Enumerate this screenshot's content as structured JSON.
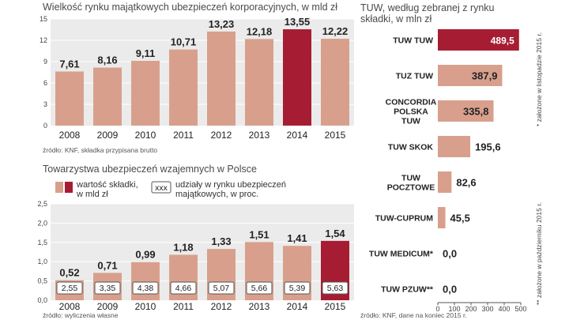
{
  "chart_data": [
    {
      "type": "bar",
      "title": "Wielkość rynku majątkowych ubezpieczeń korporacyjnych, w mld zł",
      "categories": [
        "2008",
        "2009",
        "2010",
        "2011",
        "2012",
        "2013",
        "2014",
        "2015"
      ],
      "values": [
        7.61,
        8.16,
        9.11,
        10.71,
        13.23,
        12.18,
        13.55,
        12.22
      ],
      "value_labels": [
        "7,61",
        "8,16",
        "9,11",
        "10,71",
        "13,23",
        "12,18",
        "13,55",
        "12,22"
      ],
      "y_ticks": [
        "0",
        "3",
        "6",
        "9",
        "12",
        "15"
      ],
      "ylim": [
        0,
        15
      ],
      "highlight_category": "2014",
      "source": "źródło: KNF, składka przypisana brutto"
    },
    {
      "type": "bar",
      "title": "Towarzystwa ubezpieczeń wzajemnych w Polsce",
      "categories": [
        "2008",
        "2009",
        "2010",
        "2011",
        "2012",
        "2013",
        "2014",
        "2015"
      ],
      "values": [
        0.52,
        0.71,
        0.99,
        1.18,
        1.33,
        1.51,
        1.41,
        1.54
      ],
      "value_labels": [
        "0,52",
        "0,71",
        "0,99",
        "1,18",
        "1,33",
        "1,51",
        "1,41",
        "1,54"
      ],
      "shares": [
        "2,55",
        "3,35",
        "4,38",
        "4,66",
        "5,07",
        "5,66",
        "5,39",
        "5,63"
      ],
      "y_ticks": [
        "0,0",
        "0,5",
        "1,0",
        "1,5",
        "2,0",
        "2,5"
      ],
      "ylim": [
        0,
        2.5
      ],
      "highlight_category": "2015",
      "legend": {
        "premium": "wartość składki,\nw mld zł",
        "share_box": "xxx",
        "share": "udziały w rynku ubezpieczeń\nmajątkowych, w proc."
      },
      "source": "źródło: wyliczenia własne"
    },
    {
      "type": "bar",
      "orientation": "horizontal",
      "title": "TUW, według zebranej z rynku\nskładki, w mln zł",
      "categories": [
        "TUW TUW",
        "TUZ TUW",
        "CONCORDIA\nPOLSKA\nTUW",
        "TUW SKOK",
        "TUW\nPOCZTOWE",
        "TUW-CUPRUM",
        "TUW MEDICUM*",
        "TUW PZUW**"
      ],
      "values": [
        489.5,
        387.9,
        335.8,
        195.6,
        82.6,
        45.5,
        0.0,
        0.0
      ],
      "value_labels": [
        "489,5",
        "387,9",
        "335,8",
        "195,6",
        "82,6",
        "45,5",
        "0,0",
        "0,0"
      ],
      "x_ticks": [
        "0",
        "100",
        "200",
        "300",
        "400",
        "500"
      ],
      "xlim": [
        0,
        500
      ],
      "highlight_category": "TUW TUW",
      "notes": [
        "* założone w listopadzie 2015 r.",
        "** założone w październiku 2015 r."
      ],
      "source": "źródło: KNF, dane na koniec 2015 r."
    }
  ],
  "colors": {
    "bar": "#d8a08c",
    "highlight": "#a61d33",
    "panel": "#ebebeb",
    "grid": "#ffffff"
  }
}
